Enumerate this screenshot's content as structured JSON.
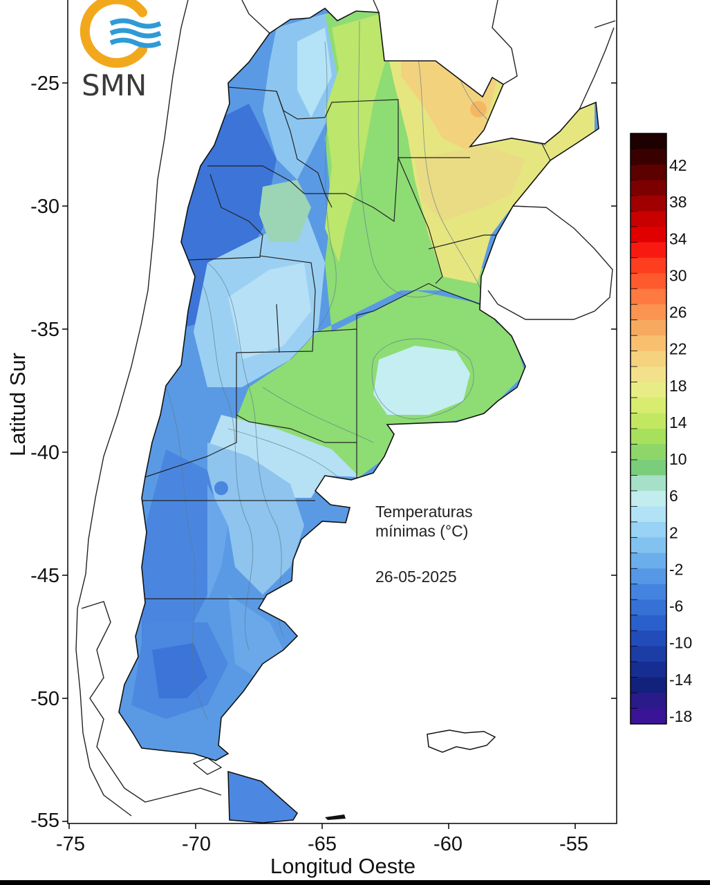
{
  "logo": {
    "text": "SMN",
    "ring_color": "#F2A81D",
    "wave_color": "#2E9BD6"
  },
  "axes": {
    "y_label": "Latitud Sur",
    "x_label": "Longitud Oeste",
    "y_ticks": [
      "-25",
      "-30",
      "-35",
      "-40",
      "-45",
      "-50",
      "-55"
    ],
    "x_ticks": [
      "-75",
      "-70",
      "-65",
      "-60",
      "-55"
    ]
  },
  "annotation": {
    "line1": "Temperaturas",
    "line2": "mínimas (°C)",
    "date": "26-05-2025"
  },
  "legend": {
    "labels": [
      "42",
      "38",
      "34",
      "30",
      "26",
      "22",
      "18",
      "14",
      "10",
      "6",
      "2",
      "-2",
      "-6",
      "-10",
      "-14",
      "-18"
    ],
    "colors": [
      "#1e0000",
      "#3a0000",
      "#5c0000",
      "#7c0000",
      "#a00000",
      "#c80000",
      "#e00000",
      "#f81a10",
      "#ff3e20",
      "#ff5a2e",
      "#ff7a40",
      "#fa9450",
      "#f6aa60",
      "#f7bf6e",
      "#f5d27e",
      "#f3e08a",
      "#e8ec84",
      "#d8ec70",
      "#c2e862",
      "#a6e05c",
      "#8ed66a",
      "#7acd7a",
      "#a6e0c8",
      "#c2ecee",
      "#b2e2f6",
      "#98d2f4",
      "#82c2f0",
      "#6aaeec",
      "#5698e6",
      "#4484e0",
      "#3672d6",
      "#2a60cc",
      "#224cba",
      "#1c3ca6",
      "#162e92",
      "#12227c",
      "#2a1a8a",
      "#3a1496"
    ]
  }
}
